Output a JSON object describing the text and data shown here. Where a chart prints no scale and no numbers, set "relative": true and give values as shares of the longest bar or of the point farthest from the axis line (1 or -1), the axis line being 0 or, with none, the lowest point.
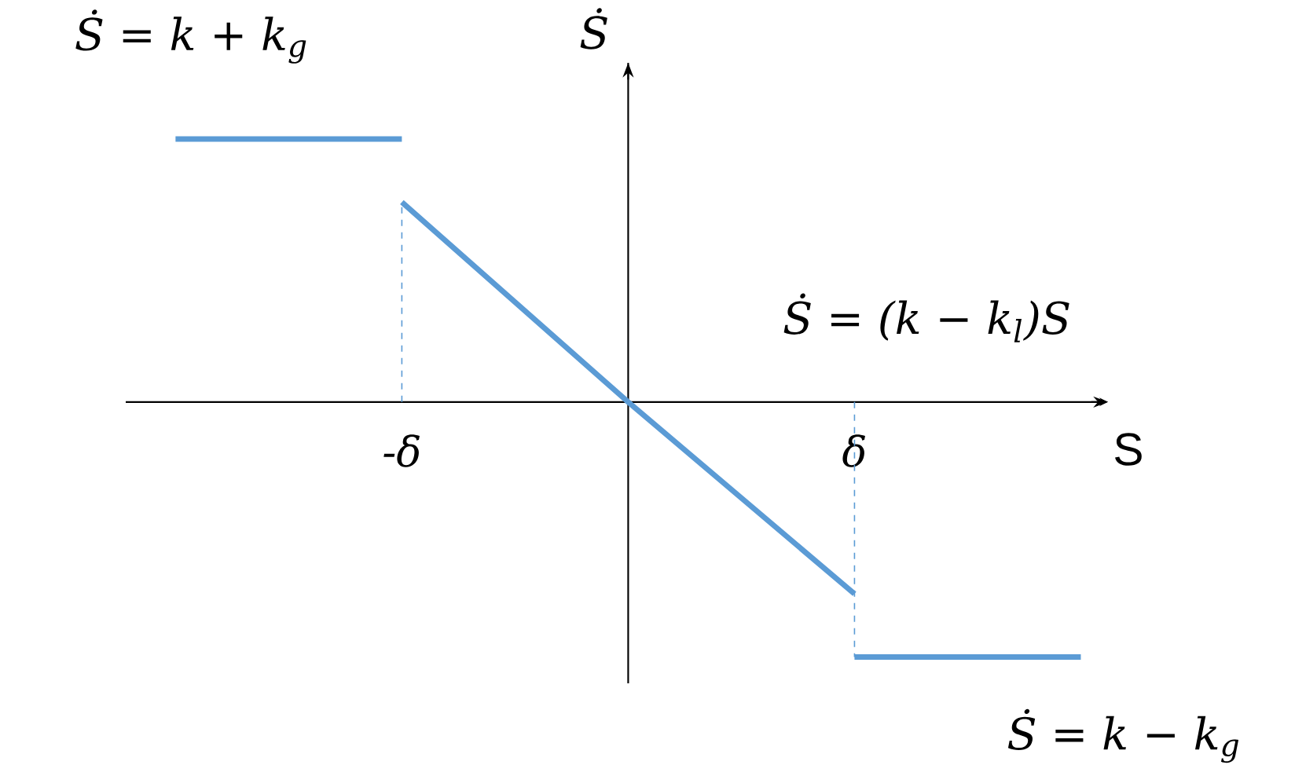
{
  "chart_data": {
    "type": "line",
    "relative": true,
    "xlabel": "S",
    "ylabel": "Ṡ",
    "categories": [
      null,
      "-δ",
      null,
      "δ",
      null
    ],
    "series": [
      {
        "color": "#5b9bd5",
        "values": [
          1,
          1,
          null,
          null,
          null
        ]
      },
      {
        "color": "#5b9bd5",
        "values": [
          null,
          0.76,
          0,
          -0.73,
          null
        ]
      },
      {
        "color": "#5b9bd5",
        "values": [
          null,
          null,
          null,
          -0.97,
          -0.97
        ]
      }
    ],
    "ref_lines": [
      {
        "axis": "x",
        "value": "-δ",
        "color": "#5b9bd5",
        "line_style": "dashed"
      },
      {
        "axis": "x",
        "value": "δ",
        "color": "#5b9bd5",
        "line_style": "dashed"
      }
    ],
    "annotations": [
      "Ṡ = k + k$_{g}$",
      "Ṡ = (k − k$_{l}$)S",
      "Ṡ = k − k$_{g}$"
    ],
    "legend": false
  }
}
